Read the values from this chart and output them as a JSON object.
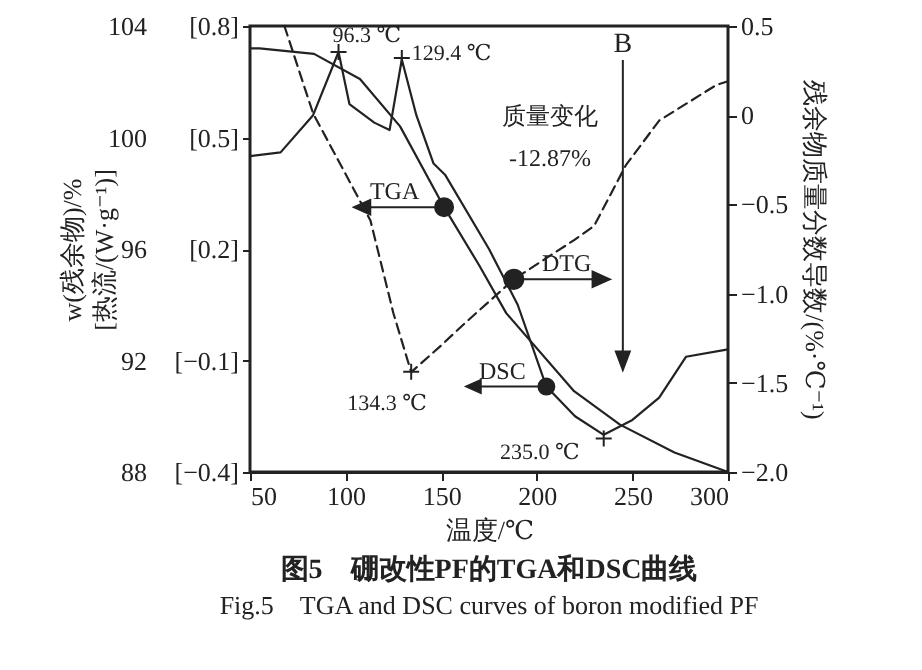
{
  "chart_data": {
    "type": "line",
    "title": "图5　硼改性PF的TGA和DSC曲线",
    "subtitle": "Fig.5　TGA and DSC curves of boron modified PF",
    "xlabel": "温度/℃",
    "ylabel": "w(残余物)/%",
    "y3label": "[热流/(W·g⁻¹)]",
    "y2label": "残余物质量分数导数/(%·℃⁻¹)",
    "xlim": [
      50,
      300
    ],
    "xticks": [
      50,
      100,
      150,
      200,
      250,
      300
    ],
    "ylim": [
      88,
      104
    ],
    "yticks": [
      88,
      92,
      96,
      100,
      104
    ],
    "y3lim": [
      -0.4,
      0.8
    ],
    "y3ticks": [
      {
        "value": -0.4,
        "label": "[−0.4]"
      },
      {
        "value": -0.1,
        "label": "[−0.1]"
      },
      {
        "value": 0.2,
        "label": "[0.2]"
      },
      {
        "value": 0.5,
        "label": "[0.5]"
      },
      {
        "value": 0.8,
        "label": "[0.8]"
      }
    ],
    "y2lim": [
      -2.0,
      0.5
    ],
    "y2ticks": [
      {
        "value": -2.0,
        "label": "−2.0"
      },
      {
        "value": -1.5,
        "label": "−1.5"
      },
      {
        "value": -1.0,
        "label": "−1.0"
      },
      {
        "value": -0.5,
        "label": "−0.5"
      },
      0,
      0.5
    ],
    "series": [
      {
        "name": "TGA",
        "color": "#222222",
        "line_style": "solid",
        "x": [
          50,
          55,
          83.5,
          107.5,
          128.5,
          151.5,
          170,
          184,
          219.5,
          243.5,
          272,
          300
        ],
        "values": [
          103.2,
          103.2,
          103.0,
          102.1,
          100.4,
          97.5,
          95.4,
          93.7,
          90.9,
          89.7,
          88.7,
          88.0
        ]
      },
      {
        "name": "DSC",
        "color": "#222222",
        "line_style": "solid",
        "axis": "y3",
        "x": [
          50,
          66,
          83,
          96.3,
          102,
          115,
          123,
          129.4,
          137,
          146,
          152,
          175,
          190,
          205,
          220,
          235,
          250,
          264,
          278,
          300
        ],
        "values": [
          0.45,
          0.46,
          0.56,
          0.73,
          0.59,
          0.54,
          0.52,
          0.71,
          0.56,
          0.43,
          0.4,
          0.2,
          0.05,
          -0.17,
          -0.25,
          -0.3,
          -0.26,
          -0.2,
          -0.09,
          -0.07
        ]
      },
      {
        "name": "DTG",
        "color": "#222222",
        "line_style": "dashed",
        "axis": "y2",
        "x": [
          68,
          83,
          100,
          113,
          125,
          134.3,
          149,
          163,
          188,
          219.5,
          230,
          246.6,
          264,
          294,
          300
        ],
        "values": [
          0.5,
          0.01,
          -0.33,
          -0.59,
          -1.11,
          -1.44,
          -1.3,
          -1.16,
          -0.92,
          -0.7,
          -0.62,
          -0.28,
          -0.03,
          0.17,
          0.19
        ]
      }
    ],
    "annotations": [
      {
        "text": "96.3 ℃",
        "x": 96.3,
        "y": 103.07
      },
      {
        "text": "129.4 ℃",
        "x": 129.4,
        "y": 102.85
      },
      {
        "text": "134.3 ℃",
        "x": 134.3,
        "y": 91.6
      },
      {
        "text": "235.0 ℃",
        "x": 235.0,
        "y": 89.2
      },
      "质量变化",
      "-12.87%"
    ],
    "ref_lines": [
      {
        "axis": "x",
        "value": 245,
        "label": "B"
      }
    ],
    "legend": "left"
  }
}
